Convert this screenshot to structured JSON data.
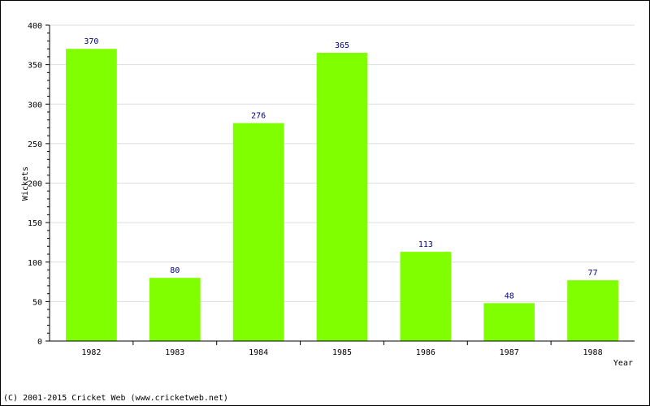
{
  "chart_data": {
    "type": "bar",
    "categories": [
      "1982",
      "1983",
      "1984",
      "1985",
      "1986",
      "1987",
      "1988"
    ],
    "values": [
      370,
      80,
      276,
      365,
      113,
      48,
      77
    ],
    "data_labels": [
      "370",
      "80",
      "276",
      "365",
      "113",
      "48",
      "77"
    ],
    "title": "",
    "xlabel": "Year",
    "ylabel": "Wickets",
    "ylim": [
      0,
      400
    ],
    "yticks": [
      0,
      50,
      100,
      150,
      200,
      250,
      300,
      350,
      400
    ],
    "ytick_labels": [
      "0",
      "50",
      "100",
      "150",
      "200",
      "250",
      "300",
      "350",
      "400"
    ],
    "grid": true,
    "legend": "none",
    "bar_color": "#80ff00",
    "label_color": "#000080",
    "grid_color": "#dddddd"
  },
  "footer": {
    "text": "(C) 2001-2015 Cricket Web (www.cricketweb.net)"
  }
}
